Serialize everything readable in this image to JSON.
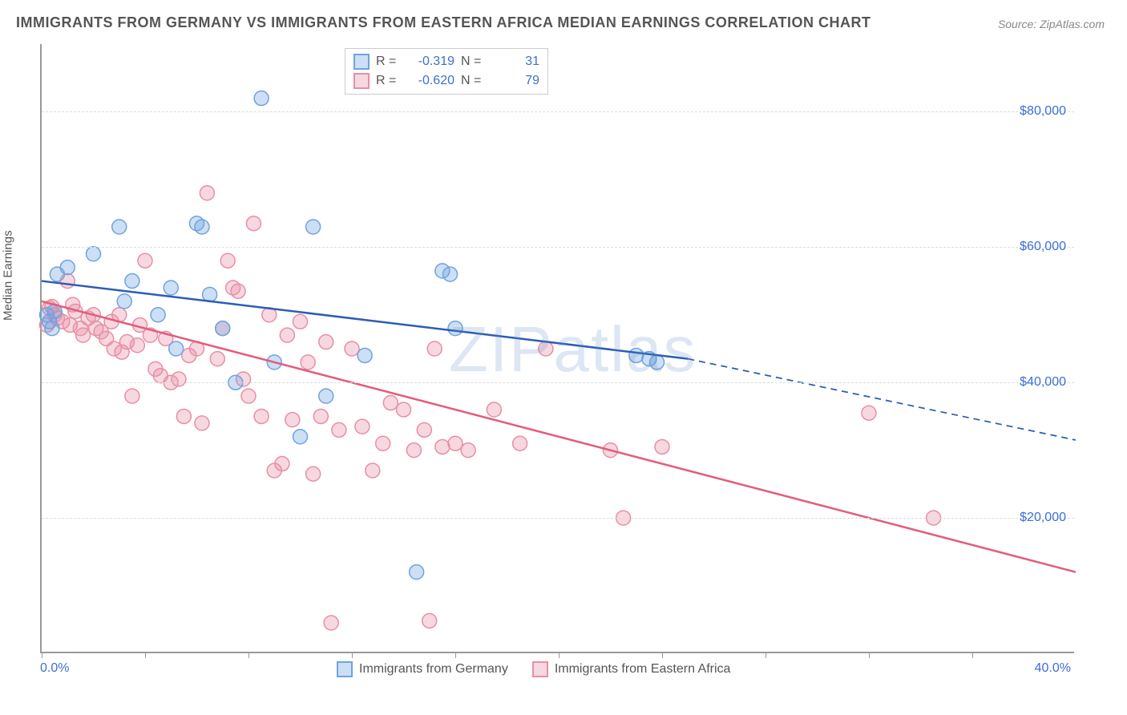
{
  "title": "IMMIGRANTS FROM GERMANY VS IMMIGRANTS FROM EASTERN AFRICA MEDIAN EARNINGS CORRELATION CHART",
  "source": "Source: ZipAtlas.com",
  "watermark": "ZIPatlas",
  "yaxis_title": "Median Earnings",
  "chart": {
    "type": "scatter",
    "xlim": [
      0,
      40
    ],
    "ylim": [
      0,
      90000
    ],
    "x_tick_positions": [
      0,
      4,
      8,
      12,
      16,
      20,
      24,
      28,
      32,
      36
    ],
    "x_label_min": "0.0%",
    "x_label_max": "40.0%",
    "y_gridlines": [
      20000,
      40000,
      60000,
      80000
    ],
    "y_tick_labels": [
      "$20,000",
      "$40,000",
      "$60,000",
      "$80,000"
    ],
    "grid_color": "#dddddd",
    "background_color": "#ffffff",
    "axis_color": "#999999",
    "tick_label_color": "#3b6fd6",
    "series": [
      {
        "name": "Immigrants from Germany",
        "color_stroke": "#6fa3e0",
        "color_fill": "rgba(111,163,224,0.35)",
        "marker_radius": 9,
        "R": "-0.319",
        "N": "31",
        "trend": {
          "x1": 0,
          "y1": 55000,
          "x2": 25,
          "y2": 43500,
          "x_dash_to": 40,
          "y_dash_to": 31500,
          "color": "#2b5db5",
          "width": 2.5
        },
        "points": [
          [
            0.2,
            50000
          ],
          [
            0.3,
            49000
          ],
          [
            0.4,
            48000
          ],
          [
            0.5,
            50500
          ],
          [
            0.6,
            56000
          ],
          [
            1.0,
            57000
          ],
          [
            2.0,
            59000
          ],
          [
            3.0,
            63000
          ],
          [
            3.2,
            52000
          ],
          [
            3.5,
            55000
          ],
          [
            4.5,
            50000
          ],
          [
            5.0,
            54000
          ],
          [
            5.2,
            45000
          ],
          [
            6.0,
            63500
          ],
          [
            6.2,
            63000
          ],
          [
            6.5,
            53000
          ],
          [
            7.0,
            48000
          ],
          [
            7.5,
            40000
          ],
          [
            8.5,
            82000
          ],
          [
            9.0,
            43000
          ],
          [
            10.0,
            32000
          ],
          [
            10.5,
            63000
          ],
          [
            11.0,
            38000
          ],
          [
            12.5,
            44000
          ],
          [
            14.5,
            12000
          ],
          [
            15.5,
            56500
          ],
          [
            15.8,
            56000
          ],
          [
            16.0,
            48000
          ],
          [
            23.0,
            44000
          ],
          [
            23.5,
            43500
          ],
          [
            23.8,
            43000
          ]
        ]
      },
      {
        "name": "Immigrants from Eastern Africa",
        "color_stroke": "#e88fa5",
        "color_fill": "rgba(232,143,165,0.35)",
        "marker_radius": 9,
        "R": "-0.620",
        "N": "79",
        "trend": {
          "x1": 0,
          "y1": 52000,
          "x2": 40,
          "y2": 12000,
          "x_dash_to": 40,
          "y_dash_to": 12000,
          "color": "#e35d7c",
          "width": 2.5
        },
        "points": [
          [
            0.3,
            51000
          ],
          [
            0.5,
            50000
          ],
          [
            0.6,
            49500
          ],
          [
            0.8,
            49000
          ],
          [
            1.0,
            55000
          ],
          [
            1.1,
            48500
          ],
          [
            1.2,
            51500
          ],
          [
            1.3,
            50500
          ],
          [
            1.5,
            48000
          ],
          [
            1.6,
            47000
          ],
          [
            1.8,
            49500
          ],
          [
            2.0,
            50000
          ],
          [
            2.1,
            48000
          ],
          [
            2.3,
            47500
          ],
          [
            2.5,
            46500
          ],
          [
            2.7,
            49000
          ],
          [
            2.8,
            45000
          ],
          [
            3.0,
            50000
          ],
          [
            3.1,
            44500
          ],
          [
            3.3,
            46000
          ],
          [
            3.5,
            38000
          ],
          [
            3.7,
            45500
          ],
          [
            3.8,
            48500
          ],
          [
            4.0,
            58000
          ],
          [
            4.2,
            47000
          ],
          [
            4.4,
            42000
          ],
          [
            4.6,
            41000
          ],
          [
            4.8,
            46500
          ],
          [
            5.0,
            40000
          ],
          [
            5.3,
            40500
          ],
          [
            5.5,
            35000
          ],
          [
            5.7,
            44000
          ],
          [
            6.0,
            45000
          ],
          [
            6.2,
            34000
          ],
          [
            6.4,
            68000
          ],
          [
            6.8,
            43500
          ],
          [
            7.0,
            48000
          ],
          [
            7.2,
            58000
          ],
          [
            7.4,
            54000
          ],
          [
            7.6,
            53500
          ],
          [
            7.8,
            40500
          ],
          [
            8.0,
            38000
          ],
          [
            8.2,
            63500
          ],
          [
            8.5,
            35000
          ],
          [
            8.8,
            50000
          ],
          [
            9.0,
            27000
          ],
          [
            9.3,
            28000
          ],
          [
            9.5,
            47000
          ],
          [
            9.7,
            34500
          ],
          [
            10.0,
            49000
          ],
          [
            10.3,
            43000
          ],
          [
            10.5,
            26500
          ],
          [
            10.8,
            35000
          ],
          [
            11.0,
            46000
          ],
          [
            11.2,
            4500
          ],
          [
            11.5,
            33000
          ],
          [
            12.0,
            45000
          ],
          [
            12.4,
            33500
          ],
          [
            12.8,
            27000
          ],
          [
            13.2,
            31000
          ],
          [
            13.5,
            37000
          ],
          [
            14.0,
            36000
          ],
          [
            14.4,
            30000
          ],
          [
            14.8,
            33000
          ],
          [
            15.0,
            4800
          ],
          [
            15.2,
            45000
          ],
          [
            15.5,
            30500
          ],
          [
            16.0,
            31000
          ],
          [
            16.5,
            30000
          ],
          [
            17.5,
            36000
          ],
          [
            18.5,
            31000
          ],
          [
            19.5,
            45000
          ],
          [
            22.0,
            30000
          ],
          [
            22.5,
            20000
          ],
          [
            24.0,
            30500
          ],
          [
            32.0,
            35500
          ],
          [
            34.5,
            20000
          ],
          [
            0.2,
            48500
          ],
          [
            0.4,
            51200
          ]
        ]
      }
    ]
  },
  "legend": {
    "R_label": "R =",
    "N_label": "N ="
  }
}
